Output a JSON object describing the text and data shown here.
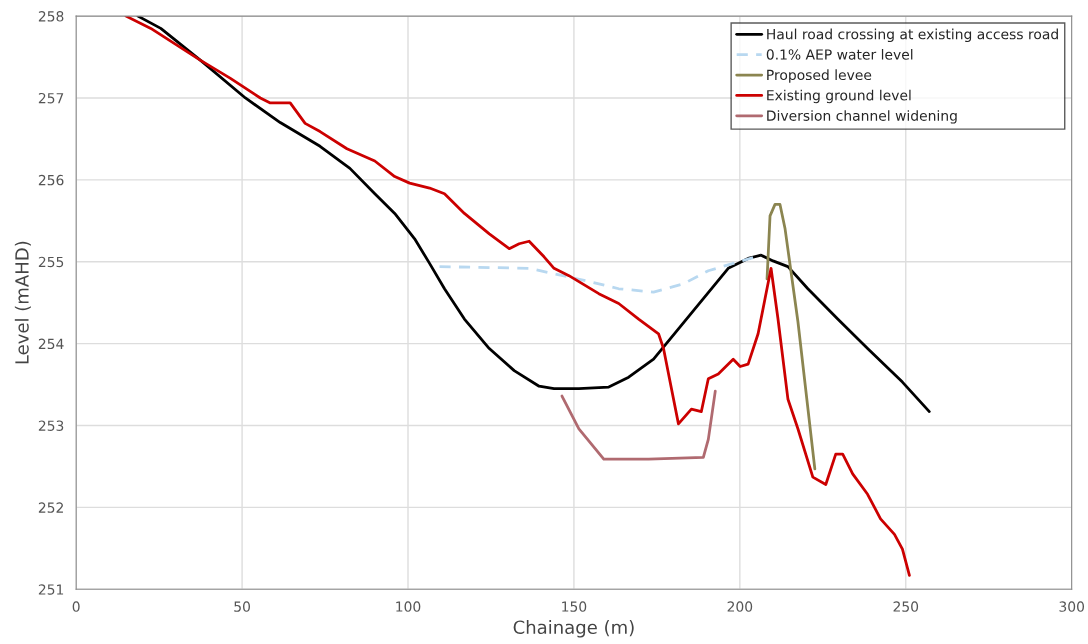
{
  "chart_data": {
    "type": "line",
    "xlabel": "Chainage (m)",
    "ylabel": "Level (mAHD)",
    "xlim": [
      0,
      300
    ],
    "xticks": [
      0,
      50,
      100,
      150,
      200,
      250,
      300
    ],
    "ylim": [
      251,
      258
    ],
    "yticks": [
      251,
      252,
      253,
      254,
      255,
      256,
      257,
      258
    ],
    "grid": true,
    "legend": "top right",
    "line_style": "solid",
    "marker": "none",
    "series": [
      {
        "name": "Haul road crossing at existing access road",
        "color": "#000000",
        "x": [
          18.6,
          25.5,
          37.5,
          51,
          61.5,
          73.5,
          82.5,
          90,
          96,
          102,
          106.5,
          111,
          117,
          124.5,
          132,
          139.5,
          144,
          151.5,
          160.5,
          166.5,
          174,
          181.5,
          189,
          196.5,
          202.5,
          206.4,
          210,
          214.5,
          220.5,
          229.5,
          238.5,
          249,
          257.1
        ],
        "values": [
          258,
          257.85,
          257.46,
          257.0,
          256.7,
          256.41,
          256.14,
          255.83,
          255.59,
          255.28,
          254.98,
          254.67,
          254.3,
          253.94,
          253.67,
          253.48,
          253.45,
          253.45,
          253.47,
          253.59,
          253.81,
          254.18,
          254.55,
          254.92,
          255.04,
          255.08,
          255.01,
          254.94,
          254.67,
          254.3,
          253.94,
          253.53,
          253.17
        ]
      },
      {
        "name": "0.1% AEP water level",
        "color": "#b8d8f0",
        "line_style": "dashed",
        "x": [
          109.5,
          136.5,
          154.5,
          163.5,
          174,
          183,
          190.5,
          206.4
        ],
        "values": [
          254.94,
          254.92,
          254.76,
          254.67,
          254.63,
          254.73,
          254.89,
          255.08
        ]
      },
      {
        "name": "Proposed levee",
        "color": "#8b8550",
        "x": [
          208.2,
          209.1,
          210.6,
          212.1,
          213.6,
          217.5,
          222.6
        ],
        "values": [
          254.79,
          255.56,
          255.7,
          255.7,
          255.41,
          254.27,
          252.47
        ]
      },
      {
        "name": "Existing ground level",
        "color": "#cc0000",
        "x": [
          15,
          22.5,
          37.5,
          46.5,
          55.5,
          58.5,
          64.5,
          69,
          73.5,
          81.6,
          90,
          96,
          100.5,
          106.5,
          111,
          117,
          124.5,
          130.5,
          133.5,
          136.5,
          141,
          144,
          148.5,
          157.5,
          163.5,
          169.5,
          175.5,
          177,
          179.1,
          181.5,
          185.4,
          188.4,
          190.5,
          193.5,
          198,
          200.1,
          202.5,
          205.5,
          207.6,
          209.4,
          211.5,
          214.5,
          217.5,
          222,
          225.9,
          228.9,
          231,
          234,
          238.5,
          242.4,
          246.6,
          249,
          251.1
        ],
        "values": [
          258,
          257.85,
          257.46,
          257.24,
          257.0,
          256.94,
          256.94,
          256.69,
          256.59,
          256.38,
          256.23,
          256.04,
          255.96,
          255.9,
          255.83,
          255.59,
          255.34,
          255.16,
          255.22,
          255.25,
          255.06,
          254.92,
          254.83,
          254.61,
          254.49,
          254.3,
          254.12,
          253.94,
          253.51,
          253.02,
          253.2,
          253.17,
          253.57,
          253.63,
          253.81,
          253.72,
          253.75,
          254.12,
          254.55,
          254.92,
          254.3,
          253.32,
          252.96,
          252.37,
          252.28,
          252.65,
          252.65,
          252.41,
          252.16,
          251.86,
          251.67,
          251.49,
          251.17
        ]
      },
      {
        "name": "Diversion channel widening",
        "color": "#b06a70",
        "x": [
          146.4,
          151.5,
          159,
          172.5,
          189,
          190.5,
          192.6
        ],
        "values": [
          253.36,
          252.96,
          252.59,
          252.59,
          252.61,
          252.83,
          253.42
        ]
      }
    ]
  }
}
